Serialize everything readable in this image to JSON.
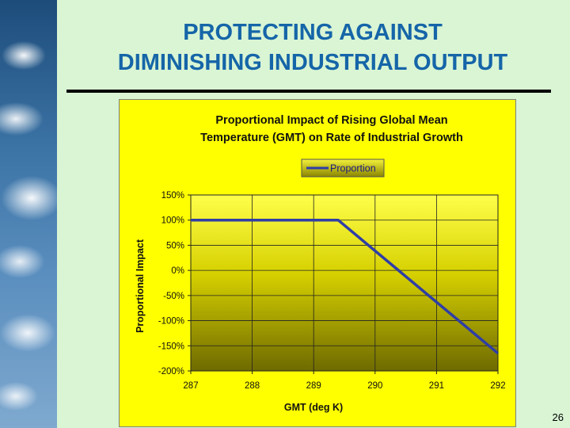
{
  "slide": {
    "title_line1": "PROTECTING AGAINST",
    "title_line2": "DIMINISHING INDUSTRIAL OUTPUT",
    "page_number": "26"
  },
  "colors": {
    "title": "#1565a8",
    "chart_bg": "#ffff00",
    "series_line": "#2f3ea6"
  },
  "chart_data": {
    "type": "line",
    "title_line1": "Proportional Impact of Rising Global Mean",
    "title_line2": "Temperature (GMT) on Rate of Industrial Growth",
    "xlabel": "GMT (deg K)",
    "ylabel": "Proportional Impact",
    "xlim": [
      287,
      292
    ],
    "ylim": [
      -200,
      150
    ],
    "x_ticks": [
      287,
      288,
      289,
      290,
      291,
      292
    ],
    "y_ticks": [
      150,
      100,
      50,
      0,
      -50,
      -100,
      -150,
      -200
    ],
    "y_tick_labels": [
      "150%",
      "100%",
      "50%",
      "0%",
      "-50%",
      "-100%",
      "-150%",
      "-200%"
    ],
    "x_tick_labels": [
      "287",
      "288",
      "289",
      "290",
      "291",
      "292"
    ],
    "grid": true,
    "legend_position": "top-center",
    "series": [
      {
        "name": "Proportion",
        "x": [
          287,
          289.4,
          292
        ],
        "y": [
          100,
          100,
          -165
        ]
      }
    ]
  }
}
